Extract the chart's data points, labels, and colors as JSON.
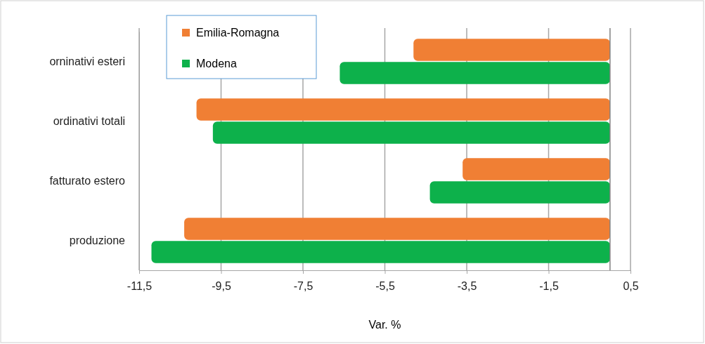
{
  "chart_data": {
    "type": "bar",
    "orientation": "horizontal",
    "xlabel": "Var. %",
    "categories": [
      "orninativi esteri",
      "ordinativi totali",
      "fatturato estero",
      "produzione"
    ],
    "series": [
      {
        "name": "Emilia-Romagna",
        "color": "#f07f34",
        "values": [
          -4.8,
          -10.1,
          -3.6,
          -10.4
        ]
      },
      {
        "name": "Modena",
        "color": "#0db14b",
        "values": [
          -6.6,
          -9.7,
          -4.4,
          -11.2
        ]
      }
    ],
    "xlim": [
      -11.5,
      0.5
    ],
    "xticks": [
      {
        "value": -11.5,
        "label": "-11,5"
      },
      {
        "value": -9.5,
        "label": "-9,5"
      },
      {
        "value": -7.5,
        "label": "-7,5"
      },
      {
        "value": -5.5,
        "label": "-5,5"
      },
      {
        "value": -3.5,
        "label": "-3,5"
      },
      {
        "value": -1.5,
        "label": "-1,5"
      },
      {
        "value": 0.5,
        "label": "0,5"
      }
    ],
    "grid": "x",
    "legend": "top left"
  }
}
